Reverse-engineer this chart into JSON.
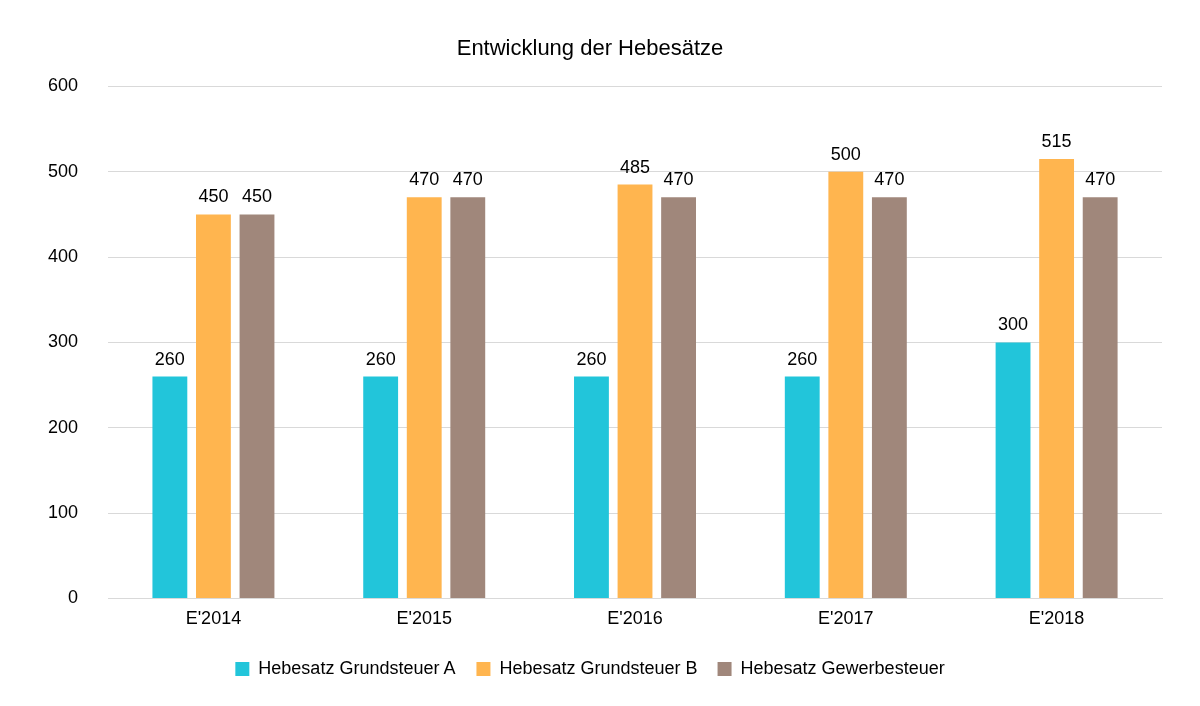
{
  "chart_data": {
    "type": "bar",
    "title": "Entwicklung der Hebesätze",
    "categories": [
      "E'2014",
      "E'2015",
      "E'2016",
      "E'2017",
      "E'2018"
    ],
    "series": [
      {
        "name": "Hebesatz Grundsteuer A",
        "color": "#22c5da",
        "values": [
          260,
          260,
          260,
          260,
          300
        ]
      },
      {
        "name": "Hebesatz Grundsteuer B",
        "color": "#ffb54f",
        "values": [
          450,
          470,
          485,
          500,
          515
        ]
      },
      {
        "name": "Hebesatz Gewerbesteuer",
        "color": "#a0877b",
        "values": [
          450,
          470,
          470,
          470,
          470
        ]
      }
    ],
    "ylim": [
      0,
      600
    ],
    "yticks": [
      0,
      100,
      200,
      300,
      400,
      500,
      600
    ],
    "grid": "y",
    "legend": "bottom",
    "data_labels": true
  }
}
